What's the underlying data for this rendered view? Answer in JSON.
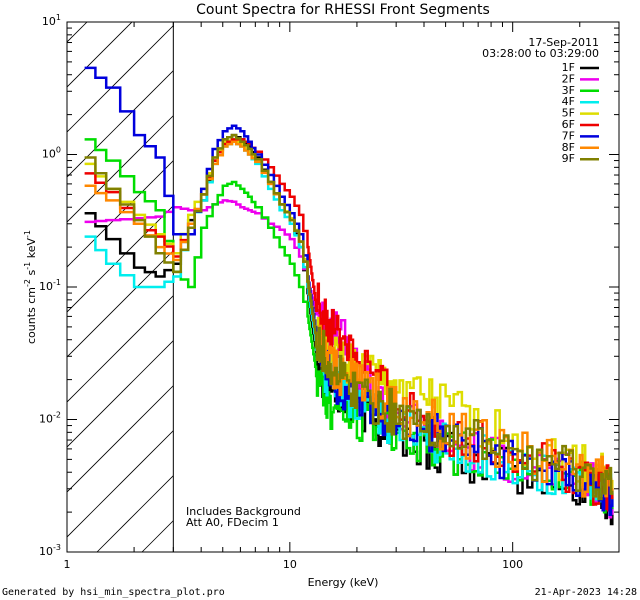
{
  "chart_data": {
    "type": "line",
    "title": "Count Spectra for RHESSI Front Segments",
    "xlabel": "Energy (keV)",
    "ylabel_parts": [
      "counts cm",
      "-2",
      " s",
      "-1",
      " keV",
      "-1"
    ],
    "xscale": "log",
    "yscale": "log",
    "xlim": [
      1,
      300
    ],
    "ylim": [
      0.001,
      10
    ],
    "x_ticks": [
      {
        "value": 1,
        "label": "1"
      },
      {
        "value": 10,
        "label": "10"
      },
      {
        "value": 100,
        "label": "100"
      }
    ],
    "y_ticks": [
      {
        "value": 0.001,
        "base": "10",
        "exp": "-3"
      },
      {
        "value": 0.01,
        "base": "10",
        "exp": "-2"
      },
      {
        "value": 0.1,
        "base": "10",
        "exp": "-1"
      },
      {
        "value": 1,
        "base": "10",
        "exp": "0"
      },
      {
        "value": 10,
        "base": "10",
        "exp": "1"
      }
    ],
    "date": "17-Sep-2011",
    "time_range": "03:28:00 to 03:29:00",
    "background_region_max_keV": 3,
    "notes": [
      "Includes Background",
      "Att A0, FDecim 1"
    ],
    "footer_left": "Generated by hsi_min_spectra_plot.pro",
    "footer_right": "21-Apr-2023 14:28",
    "series": [
      {
        "name": "1F",
        "color": "#000000",
        "x": [
          1.2,
          1.5,
          2.0,
          2.5,
          3.0,
          3.5,
          4.0,
          4.5,
          5.0,
          5.5,
          6.0,
          6.5,
          7.0,
          8.0,
          9.0,
          10,
          11,
          12,
          13,
          14,
          15,
          17,
          20,
          25,
          30,
          40,
          50,
          70,
          100,
          150,
          200,
          250,
          280
        ],
        "y": [
          0.36,
          0.23,
          0.14,
          0.12,
          0.15,
          0.32,
          0.45,
          0.9,
          1.3,
          1.4,
          1.3,
          1.15,
          0.95,
          0.62,
          0.42,
          0.32,
          0.2,
          0.09,
          0.035,
          0.022,
          0.018,
          0.014,
          0.012,
          0.009,
          0.008,
          0.006,
          0.0055,
          0.0048,
          0.004,
          0.0035,
          0.003,
          0.003,
          0.0022
        ]
      },
      {
        "name": "2F",
        "color": "#ee00ee",
        "x": [
          1.2,
          1.5,
          2.0,
          2.5,
          3.0,
          3.5,
          4.0,
          4.5,
          5.0,
          5.5,
          6.0,
          6.5,
          7.0,
          8.0,
          9.0,
          10,
          11,
          12,
          13,
          14,
          15,
          17,
          20,
          25,
          30,
          40,
          50,
          70,
          100,
          150,
          200,
          250,
          280
        ],
        "y": [
          0.31,
          0.32,
          0.33,
          0.34,
          0.4,
          0.38,
          0.38,
          0.42,
          0.45,
          0.44,
          0.4,
          0.38,
          0.36,
          0.3,
          0.27,
          0.23,
          0.17,
          0.11,
          0.07,
          0.055,
          0.048,
          0.04,
          0.025,
          0.014,
          0.011,
          0.008,
          0.0065,
          0.0055,
          0.0048,
          0.004,
          0.0035,
          0.003,
          0.0026
        ]
      },
      {
        "name": "3F",
        "color": "#00dd00",
        "x": [
          1.2,
          1.5,
          2.0,
          2.5,
          3.0,
          3.5,
          4.0,
          4.5,
          5.0,
          5.5,
          6.0,
          6.5,
          7.0,
          8.0,
          9.0,
          10,
          11,
          12,
          13,
          14,
          15,
          17,
          20,
          25,
          30,
          40,
          50,
          70,
          100,
          150,
          200,
          250,
          280
        ],
        "y": [
          1.3,
          0.9,
          0.52,
          0.38,
          0.13,
          0.1,
          0.28,
          0.42,
          0.58,
          0.62,
          0.55,
          0.48,
          0.4,
          0.28,
          0.2,
          0.15,
          0.1,
          0.06,
          0.025,
          0.016,
          0.012,
          0.011,
          0.01,
          0.009,
          0.008,
          0.007,
          0.006,
          0.005,
          0.0045,
          0.004,
          0.0035,
          0.003,
          0.0028
        ]
      },
      {
        "name": "4F",
        "color": "#00eeee",
        "x": [
          1.2,
          1.5,
          2.0,
          2.5,
          3.0,
          3.5,
          4.0,
          4.5,
          5.0,
          5.5,
          6.0,
          6.5,
          7.0,
          8.0,
          9.0,
          10,
          11,
          12,
          13,
          14,
          15,
          17,
          20,
          25,
          30,
          40,
          50,
          70,
          100,
          150,
          200,
          250,
          280
        ],
        "y": [
          0.24,
          0.15,
          0.1,
          0.1,
          0.12,
          0.3,
          0.45,
          0.85,
          1.15,
          1.25,
          1.15,
          1.0,
          0.85,
          0.55,
          0.38,
          0.3,
          0.2,
          0.1,
          0.04,
          0.026,
          0.02,
          0.016,
          0.013,
          0.01,
          0.009,
          0.0075,
          0.0065,
          0.0055,
          0.0045,
          0.004,
          0.0035,
          0.0031,
          0.0028
        ]
      },
      {
        "name": "5F",
        "color": "#dddd00",
        "x": [
          1.2,
          1.5,
          2.0,
          2.5,
          3.0,
          3.5,
          4.0,
          4.5,
          5.0,
          5.5,
          6.0,
          6.5,
          7.0,
          8.0,
          9.0,
          10,
          11,
          12,
          13,
          14,
          15,
          17,
          20,
          25,
          30,
          40,
          50,
          70,
          100,
          150,
          200,
          250,
          280
        ],
        "y": [
          0.85,
          0.55,
          0.35,
          0.25,
          0.18,
          0.35,
          0.55,
          0.95,
          1.25,
          1.3,
          1.2,
          1.05,
          0.9,
          0.6,
          0.42,
          0.33,
          0.22,
          0.12,
          0.05,
          0.035,
          0.03,
          0.028,
          0.024,
          0.02,
          0.017,
          0.014,
          0.012,
          0.009,
          0.007,
          0.005,
          0.0045,
          0.004,
          0.0035
        ]
      },
      {
        "name": "6F",
        "color": "#ee0000",
        "x": [
          1.2,
          1.5,
          2.0,
          2.5,
          3.0,
          3.5,
          4.0,
          4.5,
          5.0,
          5.5,
          6.0,
          6.5,
          7.0,
          8.0,
          9.0,
          10,
          11,
          12,
          13,
          14,
          15,
          17,
          20,
          25,
          30,
          40,
          50,
          70,
          100,
          150,
          200,
          250,
          280
        ],
        "y": [
          0.72,
          0.52,
          0.3,
          0.24,
          0.17,
          0.3,
          0.5,
          0.9,
          1.2,
          1.3,
          1.3,
          1.2,
          1.05,
          0.8,
          0.6,
          0.48,
          0.35,
          0.2,
          0.08,
          0.06,
          0.05,
          0.04,
          0.03,
          0.018,
          0.013,
          0.01,
          0.008,
          0.0065,
          0.0055,
          0.0045,
          0.0038,
          0.0032,
          0.003
        ]
      },
      {
        "name": "7F",
        "color": "#0000dd",
        "x": [
          1.2,
          1.5,
          2.0,
          2.5,
          3.0,
          3.5,
          4.0,
          4.5,
          5.0,
          5.5,
          6.0,
          6.5,
          7.0,
          8.0,
          9.0,
          10,
          11,
          12,
          13,
          14,
          15,
          17,
          20,
          25,
          30,
          40,
          50,
          70,
          100,
          150,
          200,
          250,
          280
        ],
        "y": [
          4.5,
          3.2,
          1.4,
          0.95,
          0.25,
          0.25,
          0.55,
          1.1,
          1.5,
          1.65,
          1.5,
          1.25,
          1.0,
          0.7,
          0.48,
          0.36,
          0.25,
          0.12,
          0.05,
          0.03,
          0.022,
          0.018,
          0.015,
          0.011,
          0.01,
          0.0085,
          0.0075,
          0.006,
          0.005,
          0.004,
          0.0035,
          0.003,
          0.0025
        ]
      },
      {
        "name": "8F",
        "color": "#ff8800",
        "x": [
          1.2,
          1.5,
          2.0,
          2.5,
          3.0,
          3.5,
          4.0,
          4.5,
          5.0,
          5.5,
          6.0,
          6.5,
          7.0,
          8.0,
          9.0,
          10,
          11,
          12,
          13,
          14,
          15,
          17,
          20,
          25,
          30,
          40,
          50,
          70,
          100,
          150,
          200,
          250,
          280
        ],
        "y": [
          0.58,
          0.45,
          0.3,
          0.2,
          0.16,
          0.3,
          0.5,
          0.85,
          1.15,
          1.25,
          1.15,
          1.0,
          0.88,
          0.6,
          0.42,
          0.32,
          0.22,
          0.11,
          0.045,
          0.032,
          0.026,
          0.022,
          0.019,
          0.015,
          0.012,
          0.01,
          0.0085,
          0.007,
          0.0058,
          0.0048,
          0.004,
          0.0035,
          0.003
        ]
      },
      {
        "name": "9F",
        "color": "#808000",
        "x": [
          1.2,
          1.5,
          2.0,
          2.5,
          3.0,
          3.5,
          4.0,
          4.5,
          5.0,
          5.5,
          6.0,
          6.5,
          7.0,
          8.0,
          9.0,
          10,
          11,
          12,
          13,
          14,
          15,
          17,
          20,
          25,
          30,
          40,
          50,
          70,
          100,
          150,
          200,
          250,
          280
        ],
        "y": [
          0.95,
          0.55,
          0.32,
          0.18,
          0.13,
          0.28,
          0.5,
          0.95,
          1.3,
          1.4,
          1.25,
          1.1,
          0.92,
          0.62,
          0.42,
          0.32,
          0.22,
          0.11,
          0.045,
          0.032,
          0.026,
          0.021,
          0.017,
          0.013,
          0.011,
          0.009,
          0.0078,
          0.0065,
          0.0055,
          0.0045,
          0.0038,
          0.0033,
          0.0029
        ]
      }
    ]
  }
}
